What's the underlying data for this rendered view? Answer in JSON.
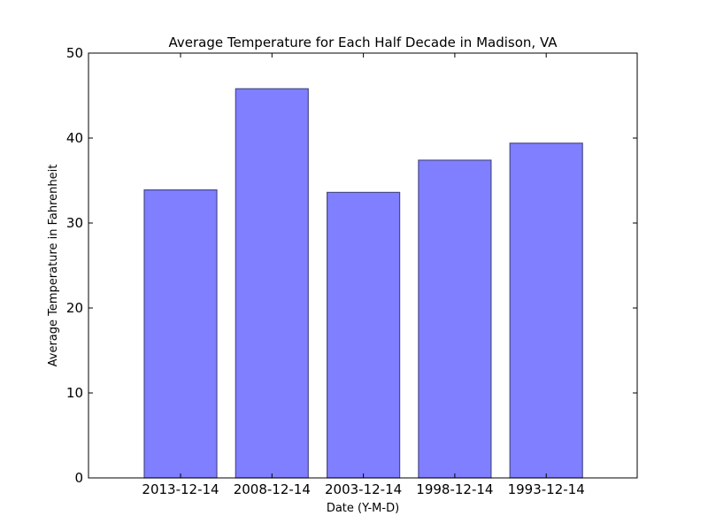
{
  "chart_data": {
    "type": "bar",
    "title": "Average Temperature for Each Half Decade in Madison, VA",
    "xlabel": "Date (Y-M-D)",
    "ylabel": "Average Temperature in Fahrenheit",
    "categories": [
      "2013-12-14",
      "2008-12-14",
      "2003-12-14",
      "1998-12-14",
      "1993-12-14"
    ],
    "values": [
      33.9,
      45.8,
      33.6,
      37.4,
      39.4
    ],
    "ylim": [
      0,
      50
    ],
    "yticks": [
      0,
      10,
      20,
      30,
      40,
      50
    ],
    "grid": false,
    "colors": {
      "bar_fill": "#7f7fff",
      "bar_edge": "#4a4a8c"
    }
  }
}
